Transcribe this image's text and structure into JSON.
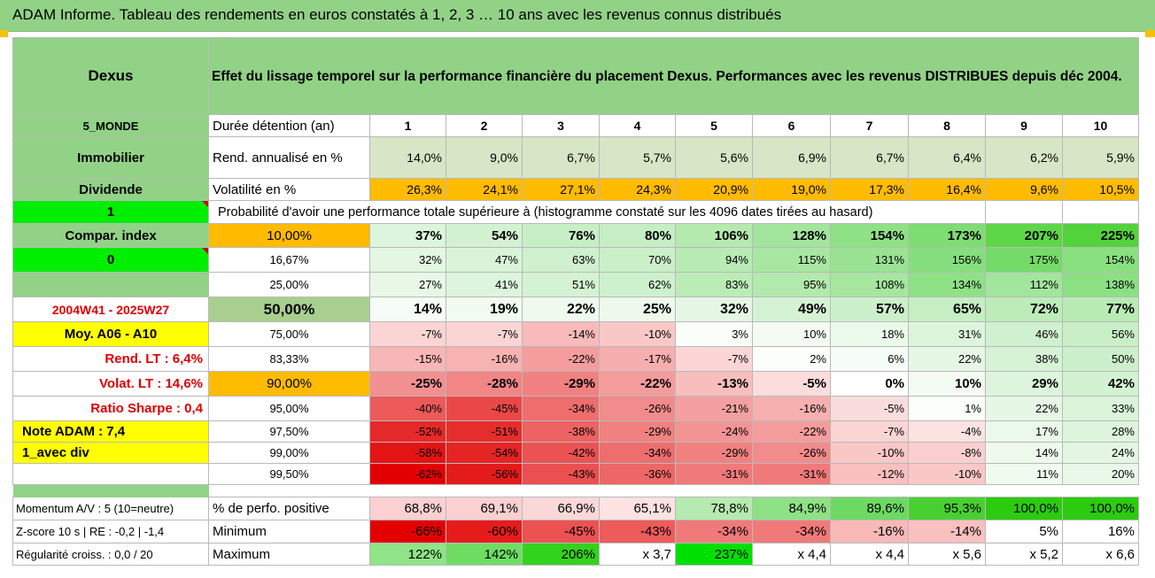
{
  "title": "ADAM Informe. Tableau des rendements en euros constatés à 1, 2, 3 … 10 ans avec les revenus connus distribués",
  "header": {
    "fund": "Dexus",
    "description": "Effet du lissage temporel sur la performance financière du placement Dexus. Performances avec les revenus DISTRIBUES depuis déc 2004."
  },
  "rows": {
    "durations": {
      "side": "5_MONDE",
      "label": "Durée détention (an)",
      "values": [
        "1",
        "2",
        "3",
        "4",
        "5",
        "6",
        "7",
        "8",
        "9",
        "10"
      ]
    },
    "returns": {
      "side": "Immobilier",
      "label": "Rend. annualisé en %",
      "values": [
        "14,0%",
        "9,0%",
        "6,7%",
        "5,7%",
        "5,6%",
        "6,9%",
        "6,7%",
        "6,4%",
        "6,2%",
        "5,9%"
      ]
    },
    "volatility": {
      "side": "Dividende",
      "label": "Volatilité en %",
      "values": [
        "26,3%",
        "24,1%",
        "27,1%",
        "24,3%",
        "20,9%",
        "19,0%",
        "17,3%",
        "16,4%",
        "9,6%",
        "10,5%"
      ]
    },
    "probability": {
      "side": "1",
      "label": "Probabilité d'avoir une performance totale supérieure à (histogramme constaté sur les 4096 dates tirées au hasard)"
    },
    "quantiles": [
      {
        "side": "Compar. index",
        "q": "10,00%",
        "values": [
          "37%",
          "54%",
          "76%",
          "80%",
          "106%",
          "128%",
          "154%",
          "173%",
          "207%",
          "225%"
        ],
        "colors": [
          "#dcf5dc",
          "#d2f2d1",
          "#c7efc6",
          "#c5eec4",
          "#b4eaae",
          "#a2e59c",
          "#8fe185",
          "#7ddd71",
          "#5dd648",
          "#52d33c"
        ]
      },
      {
        "side": "0",
        "q": "16,67%",
        "values": [
          "32%",
          "47%",
          "63%",
          "70%",
          "94%",
          "115%",
          "131%",
          "156%",
          "175%",
          "154%"
        ],
        "colors": [
          "#e3f7e2",
          "#d9f4d8",
          "#cff1cd",
          "#cbf0c9",
          "#b9ebb4",
          "#a8e7a2",
          "#99e393",
          "#86df7d",
          "#74db68",
          "#89e080"
        ]
      },
      {
        "side": "",
        "q": "25,00%",
        "values": [
          "27%",
          "41%",
          "51%",
          "62%",
          "83%",
          "95%",
          "108%",
          "134%",
          "112%",
          "138%"
        ],
        "colors": [
          "#e8f8e7",
          "#dcf5dc",
          "#d4f3d3",
          "#cef1cd",
          "#bbecb6",
          "#b2e9ac",
          "#a6e69f",
          "#8fe186",
          "#a2e59c",
          "#8be083"
        ]
      },
      {
        "side": "2004W41 - 2025W27",
        "q": "50,00%",
        "values": [
          "14%",
          "19%",
          "22%",
          "25%",
          "32%",
          "49%",
          "57%",
          "65%",
          "72%",
          "77%"
        ],
        "colors": [
          "#f6fcf6",
          "#f1fbf1",
          "#eefaee",
          "#ecf9eb",
          "#e5f7e4",
          "#d5f3d4",
          "#ccf0cb",
          "#c5eec3",
          "#bdecb8",
          "#b9ebb4"
        ]
      },
      {
        "side": "Moy. A06 - A10",
        "q": "75,00%",
        "values": [
          "-7%",
          "-7%",
          "-14%",
          "-10%",
          "3%",
          "10%",
          "18%",
          "31%",
          "46%",
          "56%"
        ],
        "colors": [
          "#fbd4d4",
          "#fbd4d4",
          "#f8baba",
          "#fac7c7",
          "#fafdfa",
          "#f3fbf2",
          "#ebf9ea",
          "#ddf5dc",
          "#d0f1cf",
          "#c9efc7"
        ]
      },
      {
        "side": "Rend. LT : 6,4%",
        "q": "83,33%",
        "values": [
          "-15%",
          "-16%",
          "-22%",
          "-17%",
          "-7%",
          "2%",
          "6%",
          "22%",
          "38%",
          "50%"
        ],
        "colors": [
          "#f8b6b6",
          "#f7b2b2",
          "#f59c9c",
          "#f7aeae",
          "#fcd6d6",
          "#fbfefb",
          "#f6fcf6",
          "#e6f7e5",
          "#d7f3d6",
          "#cdf0cc"
        ]
      },
      {
        "side": "Volat. LT : 14,6%",
        "q": "90,00%",
        "values": [
          "-25%",
          "-28%",
          "-29%",
          "-22%",
          "-13%",
          "-5%",
          "0%",
          "10%",
          "29%",
          "42%"
        ],
        "colors": [
          "#f39090",
          "#f28585",
          "#f18181",
          "#f59c9c",
          "#f8bebe",
          "#fcdcdc",
          "#ffffff",
          "#f3fbf2",
          "#ddf5dc",
          "#d3f2d2"
        ]
      },
      {
        "side": "Ratio Sharpe : 0,4",
        "q": "95,00%",
        "values": [
          "-40%",
          "-45%",
          "-34%",
          "-26%",
          "-21%",
          "-16%",
          "-5%",
          "1%",
          "22%",
          "33%"
        ],
        "colors": [
          "#ec5a5a",
          "#ea4848",
          "#ee6e6e",
          "#f28b8b",
          "#f4a0a0",
          "#f6b0b0",
          "#fbdcdc",
          "#fcfefc",
          "#e6f7e5",
          "#dbf4da"
        ]
      },
      {
        "side": "Note ADAM : 7,4",
        "q": "97,50%",
        "values": [
          "-52%",
          "-51%",
          "-38%",
          "-29%",
          "-24%",
          "-22%",
          "-7%",
          "-4%",
          "17%",
          "28%"
        ],
        "colors": [
          "#e62929",
          "#e62d2d",
          "#ed6262",
          "#f18181",
          "#f39494",
          "#f59c9c",
          "#fbd4d4",
          "#fde2e2",
          "#eaf9ea",
          "#def5dd"
        ]
      },
      {
        "side": "1_avec div",
        "q": "99,00%",
        "values": [
          "-58%",
          "-54%",
          "-42%",
          "-34%",
          "-29%",
          "-26%",
          "-10%",
          "-8%",
          "14%",
          "24%"
        ],
        "colors": [
          "#e41414",
          "#e52424",
          "#eb5353",
          "#ee6e6e",
          "#f18181",
          "#f28b8b",
          "#fac7c7",
          "#fbcfcf",
          "#edfaec",
          "#e3f6e2"
        ]
      },
      {
        "side": "",
        "q": "99,50%",
        "values": [
          "-62%",
          "-56%",
          "-43%",
          "-36%",
          "-31%",
          "-31%",
          "-12%",
          "-10%",
          "11%",
          "20%"
        ],
        "colors": [
          "#e30000",
          "#e41b1b",
          "#eb4f4f",
          "#ee6767",
          "#f07a7a",
          "#f07a7a",
          "#f9bfbf",
          "#fac7c7",
          "#f0fbef",
          "#e9f8e8"
        ]
      }
    ],
    "positive": {
      "side": "Momentum A/V : 5 (10=neutre)",
      "label": "% de perfo. positive",
      "values": [
        "68,8%",
        "69,1%",
        "66,9%",
        "65,1%",
        "78,8%",
        "84,9%",
        "89,6%",
        "95,3%",
        "100,0%",
        "100,0%"
      ],
      "colors": [
        "#fbd0d0",
        "#fbd0d0",
        "#fbd8d8",
        "#fde2e2",
        "#b6eab0",
        "#8fe186",
        "#6ed962",
        "#48d031",
        "#2ccb0f",
        "#2ccb0f"
      ]
    },
    "minimum": {
      "side": "Z-score 10 s | RE : -0,2 | -1,4",
      "label": "Minimum",
      "values": [
        "-66%",
        "-60%",
        "-45%",
        "-43%",
        "-34%",
        "-34%",
        "-16%",
        "-14%",
        "5%",
        "16%"
      ],
      "colors": [
        "#e30000",
        "#e61c1c",
        "#ec5252",
        "#ed5b5b",
        "#f07a7a",
        "#f07a7a",
        "#f8b8b8",
        "#f9c0c0",
        "#ffffff",
        "#ffffff"
      ]
    },
    "maximum": {
      "side": "Régularité croiss. : 0,0 / 20",
      "label": "Maximum",
      "values": [
        "122%",
        "142%",
        "206%",
        "x 3,7",
        "237%",
        "x 4,4",
        "x 4,4",
        "x 5,6",
        "x 5,2",
        "x 6,6"
      ],
      "colors": [
        "#8ee486",
        "#6fdd63",
        "#33d21c",
        "#ffffff",
        "#00e000",
        "#ffffff",
        "#ffffff",
        "#ffffff",
        "#ffffff",
        "#ffffff"
      ]
    }
  }
}
